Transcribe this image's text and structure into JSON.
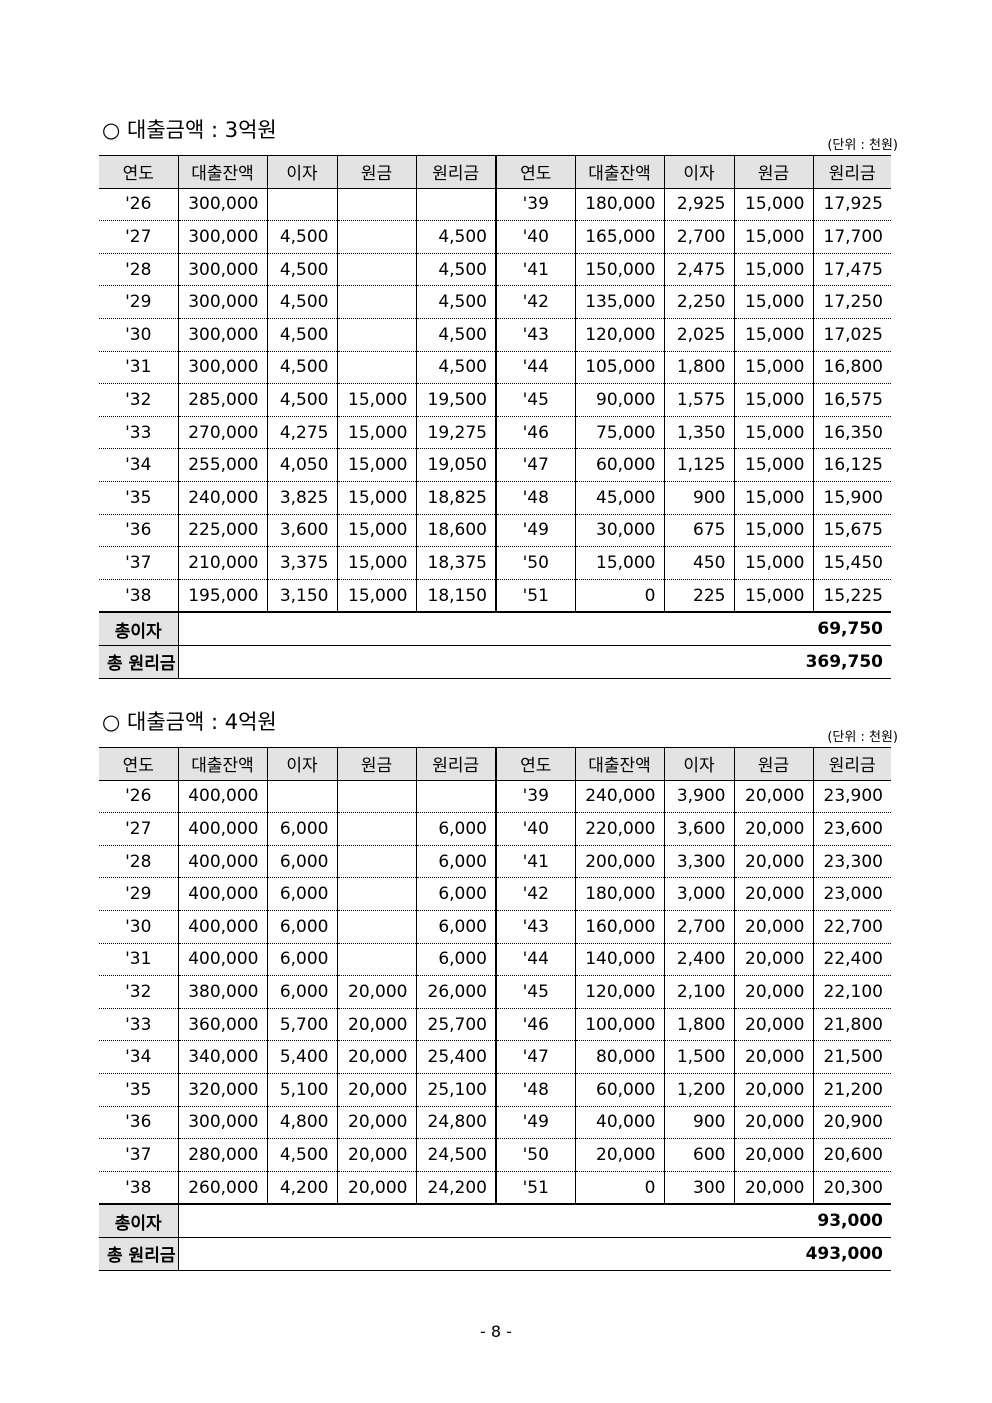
{
  "headers": [
    "연도",
    "대출잔액",
    "이자",
    "원금",
    "원리금",
    "연도",
    "대출잔액",
    "이자",
    "원금",
    "원리금"
  ],
  "unit_label": "(단위 : 천원)",
  "total_interest_label": "총이자",
  "total_sum_label": "총 원리금",
  "page_number": "- 8 -",
  "sections": [
    {
      "title": "○ 대출금액 : 3억원",
      "rows": [
        [
          "'26",
          "300,000",
          "",
          "",
          "",
          "'39",
          "180,000",
          "2,925",
          "15,000",
          "17,925"
        ],
        [
          "'27",
          "300,000",
          "4,500",
          "",
          "4,500",
          "'40",
          "165,000",
          "2,700",
          "15,000",
          "17,700"
        ],
        [
          "'28",
          "300,000",
          "4,500",
          "",
          "4,500",
          "'41",
          "150,000",
          "2,475",
          "15,000",
          "17,475"
        ],
        [
          "'29",
          "300,000",
          "4,500",
          "",
          "4,500",
          "'42",
          "135,000",
          "2,250",
          "15,000",
          "17,250"
        ],
        [
          "'30",
          "300,000",
          "4,500",
          "",
          "4,500",
          "'43",
          "120,000",
          "2,025",
          "15,000",
          "17,025"
        ],
        [
          "'31",
          "300,000",
          "4,500",
          "",
          "4,500",
          "'44",
          "105,000",
          "1,800",
          "15,000",
          "16,800"
        ],
        [
          "'32",
          "285,000",
          "4,500",
          "15,000",
          "19,500",
          "'45",
          "90,000",
          "1,575",
          "15,000",
          "16,575"
        ],
        [
          "'33",
          "270,000",
          "4,275",
          "15,000",
          "19,275",
          "'46",
          "75,000",
          "1,350",
          "15,000",
          "16,350"
        ],
        [
          "'34",
          "255,000",
          "4,050",
          "15,000",
          "19,050",
          "'47",
          "60,000",
          "1,125",
          "15,000",
          "16,125"
        ],
        [
          "'35",
          "240,000",
          "3,825",
          "15,000",
          "18,825",
          "'48",
          "45,000",
          "900",
          "15,000",
          "15,900"
        ],
        [
          "'36",
          "225,000",
          "3,600",
          "15,000",
          "18,600",
          "'49",
          "30,000",
          "675",
          "15,000",
          "15,675"
        ],
        [
          "'37",
          "210,000",
          "3,375",
          "15,000",
          "18,375",
          "'50",
          "15,000",
          "450",
          "15,000",
          "15,450"
        ],
        [
          "'38",
          "195,000",
          "3,150",
          "15,000",
          "18,150",
          "'51",
          "0",
          "225",
          "15,000",
          "15,225"
        ]
      ],
      "total_interest": "69,750",
      "total_sum": "369,750"
    },
    {
      "title": "○ 대출금액 : 4억원",
      "rows": [
        [
          "'26",
          "400,000",
          "",
          "",
          "",
          "'39",
          "240,000",
          "3,900",
          "20,000",
          "23,900"
        ],
        [
          "'27",
          "400,000",
          "6,000",
          "",
          "6,000",
          "'40",
          "220,000",
          "3,600",
          "20,000",
          "23,600"
        ],
        [
          "'28",
          "400,000",
          "6,000",
          "",
          "6,000",
          "'41",
          "200,000",
          "3,300",
          "20,000",
          "23,300"
        ],
        [
          "'29",
          "400,000",
          "6,000",
          "",
          "6,000",
          "'42",
          "180,000",
          "3,000",
          "20,000",
          "23,000"
        ],
        [
          "'30",
          "400,000",
          "6,000",
          "",
          "6,000",
          "'43",
          "160,000",
          "2,700",
          "20,000",
          "22,700"
        ],
        [
          "'31",
          "400,000",
          "6,000",
          "",
          "6,000",
          "'44",
          "140,000",
          "2,400",
          "20,000",
          "22,400"
        ],
        [
          "'32",
          "380,000",
          "6,000",
          "20,000",
          "26,000",
          "'45",
          "120,000",
          "2,100",
          "20,000",
          "22,100"
        ],
        [
          "'33",
          "360,000",
          "5,700",
          "20,000",
          "25,700",
          "'46",
          "100,000",
          "1,800",
          "20,000",
          "21,800"
        ],
        [
          "'34",
          "340,000",
          "5,400",
          "20,000",
          "25,400",
          "'47",
          "80,000",
          "1,500",
          "20,000",
          "21,500"
        ],
        [
          "'35",
          "320,000",
          "5,100",
          "20,000",
          "25,100",
          "'48",
          "60,000",
          "1,200",
          "20,000",
          "21,200"
        ],
        [
          "'36",
          "300,000",
          "4,800",
          "20,000",
          "24,800",
          "'49",
          "40,000",
          "900",
          "20,000",
          "20,900"
        ],
        [
          "'37",
          "280,000",
          "4,500",
          "20,000",
          "24,500",
          "'50",
          "20,000",
          "600",
          "20,000",
          "20,600"
        ],
        [
          "'38",
          "260,000",
          "4,200",
          "20,000",
          "24,200",
          "'51",
          "0",
          "300",
          "20,000",
          "20,300"
        ]
      ],
      "total_interest": "93,000",
      "total_sum": "493,000"
    }
  ]
}
